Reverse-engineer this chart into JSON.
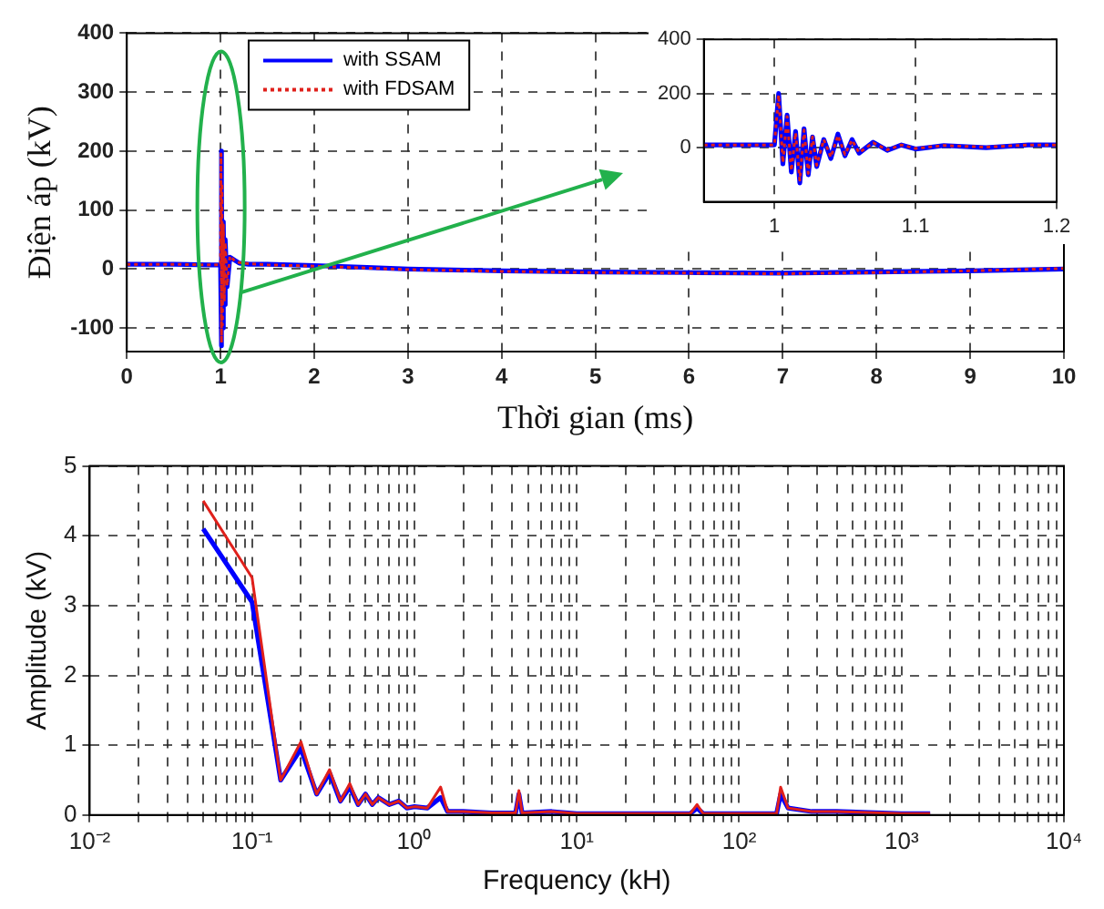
{
  "chart_data": [
    {
      "type": "line",
      "xlabel": "Thời gian (ms)",
      "ylabel": "Điện áp (kV)",
      "xlim": [
        0,
        10
      ],
      "ylim": [
        -140,
        400
      ],
      "xticks": [
        0,
        1,
        2,
        3,
        4,
        5,
        6,
        7,
        8,
        9,
        10
      ],
      "yticks": [
        -100,
        0,
        100,
        200,
        300,
        400
      ],
      "grid": true,
      "legend": "top left",
      "marker": "none",
      "x": [
        0,
        0.5,
        0.9,
        0.98,
        1.0,
        1.005,
        1.01,
        1.015,
        1.02,
        1.03,
        1.04,
        1.05,
        1.07,
        1.1,
        1.15,
        1.2,
        1.3,
        1.5,
        2,
        2.5,
        3,
        4,
        5,
        6,
        7,
        8,
        9,
        10
      ],
      "series": [
        {
          "name": "with SSAM",
          "color": "#0000ff",
          "line_style": "solid",
          "values": [
            8,
            8,
            7,
            7,
            7,
            200,
            -130,
            150,
            -100,
            80,
            -60,
            50,
            -30,
            20,
            15,
            10,
            8,
            8,
            6,
            3,
            0,
            -3,
            -5,
            -6,
            -7,
            -5,
            -3,
            0
          ]
        },
        {
          "name": "with FDSAM",
          "color": "#e0201b",
          "line_style": "dotted",
          "values": [
            8,
            8,
            7,
            7,
            7,
            195,
            -125,
            145,
            -95,
            75,
            -55,
            45,
            -28,
            22,
            14,
            11,
            9,
            7,
            5,
            2,
            -1,
            -4,
            -6,
            -7,
            -8,
            -6,
            -3,
            1
          ]
        }
      ]
    },
    {
      "type": "line",
      "xlim": [
        0.95,
        1.2
      ],
      "ylim": [
        -200,
        400
      ],
      "xticks": [
        1,
        1.1,
        1.2
      ],
      "yticks": [
        0,
        200,
        400
      ],
      "grid": true,
      "marker": "none",
      "x": [
        0.95,
        1.0,
        1.003,
        1.006,
        1.009,
        1.012,
        1.015,
        1.018,
        1.021,
        1.024,
        1.027,
        1.03,
        1.035,
        1.04,
        1.045,
        1.05,
        1.055,
        1.06,
        1.07,
        1.08,
        1.09,
        1.1,
        1.12,
        1.15,
        1.18,
        1.2
      ],
      "series": [
        {
          "color": "#0000ff",
          "line_style": "solid",
          "values": [
            10,
            10,
            200,
            -60,
            120,
            -90,
            60,
            -130,
            70,
            -100,
            40,
            -70,
            30,
            -40,
            50,
            -30,
            30,
            -20,
            20,
            -10,
            10,
            -5,
            8,
            0,
            10,
            10
          ]
        },
        {
          "color": "#e0201b",
          "line_style": "dotted",
          "values": [
            10,
            10,
            195,
            -55,
            115,
            -85,
            55,
            -120,
            65,
            -95,
            40,
            -65,
            30,
            -35,
            45,
            -25,
            28,
            -18,
            18,
            -8,
            10,
            -3,
            8,
            2,
            10,
            10
          ]
        }
      ]
    },
    {
      "type": "line",
      "xlabel": "Frequency (kH)",
      "ylabel": "Amplitude (kV)",
      "log": "x",
      "xlim": [
        0.01,
        10000
      ],
      "ylim": [
        0,
        5
      ],
      "yticks": [
        0,
        1,
        2,
        3,
        4,
        5
      ],
      "grid": true,
      "marker": "none",
      "xticks": [
        {
          "value": 0.01,
          "label": "10⁻²"
        },
        {
          "value": 0.02,
          "label": null
        },
        {
          "value": 0.03,
          "label": null
        },
        {
          "value": 0.04,
          "label": null
        },
        {
          "value": 0.05,
          "label": null
        },
        {
          "value": 0.06,
          "label": null
        },
        {
          "value": 0.07,
          "label": null
        },
        {
          "value": 0.08,
          "label": null
        },
        {
          "value": 0.09,
          "label": null
        },
        {
          "value": 0.1,
          "label": "10⁻¹"
        },
        {
          "value": 0.2,
          "label": null
        },
        {
          "value": 0.3,
          "label": null
        },
        {
          "value": 0.4,
          "label": null
        },
        {
          "value": 0.5,
          "label": null
        },
        {
          "value": 0.6,
          "label": null
        },
        {
          "value": 0.7,
          "label": null
        },
        {
          "value": 0.8,
          "label": null
        },
        {
          "value": 0.9,
          "label": null
        },
        {
          "value": 1,
          "label": "10⁰"
        },
        {
          "value": 2,
          "label": null
        },
        {
          "value": 3,
          "label": null
        },
        {
          "value": 4,
          "label": null
        },
        {
          "value": 5,
          "label": null
        },
        {
          "value": 6,
          "label": null
        },
        {
          "value": 7,
          "label": null
        },
        {
          "value": 8,
          "label": null
        },
        {
          "value": 9,
          "label": null
        },
        {
          "value": 10,
          "label": "10¹"
        },
        {
          "value": 20,
          "label": null
        },
        {
          "value": 30,
          "label": null
        },
        {
          "value": 40,
          "label": null
        },
        {
          "value": 50,
          "label": null
        },
        {
          "value": 60,
          "label": null
        },
        {
          "value": 70,
          "label": null
        },
        {
          "value": 80,
          "label": null
        },
        {
          "value": 90,
          "label": null
        },
        {
          "value": 100,
          "label": "10²"
        },
        {
          "value": 200,
          "label": null
        },
        {
          "value": 300,
          "label": null
        },
        {
          "value": 400,
          "label": null
        },
        {
          "value": 500,
          "label": null
        },
        {
          "value": 600,
          "label": null
        },
        {
          "value": 700,
          "label": null
        },
        {
          "value": 800,
          "label": null
        },
        {
          "value": 900,
          "label": null
        },
        {
          "value": 1000,
          "label": "10³"
        },
        {
          "value": 2000,
          "label": null
        },
        {
          "value": 3000,
          "label": null
        },
        {
          "value": 4000,
          "label": null
        },
        {
          "value": 5000,
          "label": null
        },
        {
          "value": 6000,
          "label": null
        },
        {
          "value": 7000,
          "label": null
        },
        {
          "value": 8000,
          "label": null
        },
        {
          "value": 9000,
          "label": null
        },
        {
          "value": 10000,
          "label": "10⁴"
        }
      ],
      "x": [
        0.05,
        0.1,
        0.15,
        0.2,
        0.25,
        0.3,
        0.35,
        0.4,
        0.45,
        0.5,
        0.55,
        0.6,
        0.7,
        0.8,
        0.9,
        1.0,
        1.2,
        1.45,
        1.6,
        2,
        3,
        4.2,
        4.4,
        4.6,
        7,
        10,
        50,
        55,
        60,
        170,
        180,
        200,
        280,
        400,
        1000,
        1500
      ],
      "series": [
        {
          "color": "#0000ff",
          "line_style": "solid",
          "values": [
            4.1,
            3.05,
            0.5,
            0.95,
            0.3,
            0.6,
            0.2,
            0.4,
            0.15,
            0.3,
            0.15,
            0.25,
            0.15,
            0.2,
            0.1,
            0.12,
            0.1,
            0.25,
            0.05,
            0.05,
            0.03,
            0.03,
            0.3,
            0.03,
            0.05,
            0.02,
            0.02,
            0.1,
            0.02,
            0.02,
            0.3,
            0.1,
            0.05,
            0.05,
            0.02,
            0.02
          ]
        },
        {
          "color": "#e0201b",
          "line_style": "solid",
          "values": [
            4.5,
            3.4,
            0.5,
            1.05,
            0.3,
            0.65,
            0.2,
            0.45,
            0.15,
            0.3,
            0.15,
            0.25,
            0.15,
            0.2,
            0.1,
            0.12,
            0.1,
            0.4,
            0.05,
            0.05,
            0.03,
            0.03,
            0.35,
            0.03,
            0.05,
            0.02,
            0.02,
            0.15,
            0.02,
            0.02,
            0.4,
            0.1,
            0.05,
            0.05,
            0.02,
            0.02
          ]
        }
      ]
    }
  ]
}
